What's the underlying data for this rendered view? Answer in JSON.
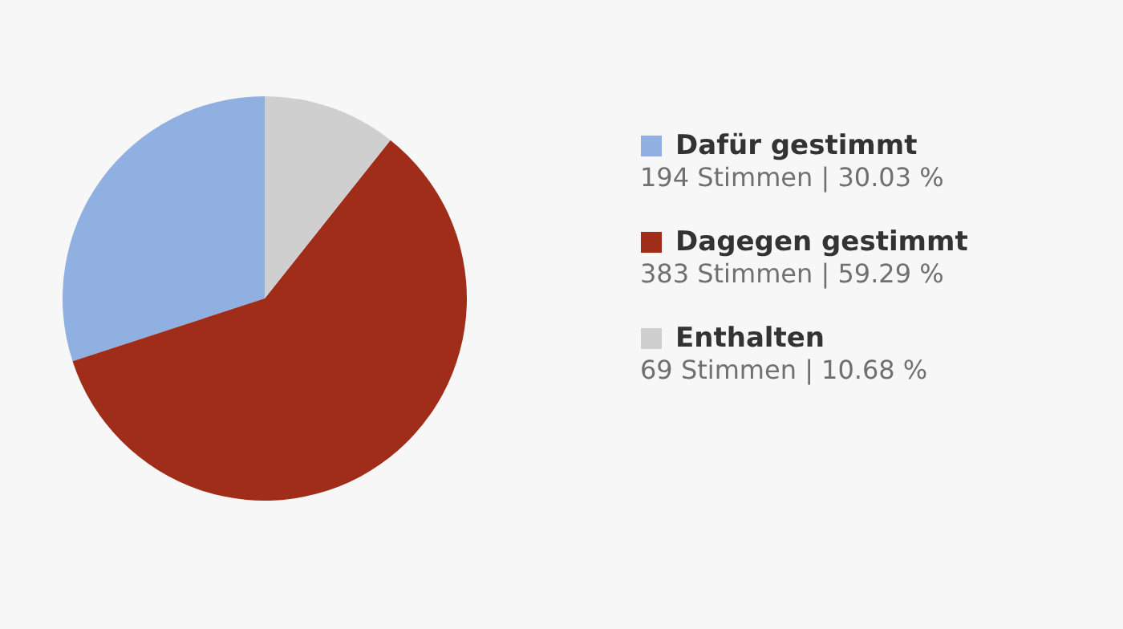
{
  "chart_data": {
    "type": "pie",
    "categories": [
      "Dafür gestimmt",
      "Dagegen gestimmt",
      "Enthalten"
    ],
    "values": [
      194,
      383,
      69
    ],
    "colors": [
      "#8fb0e0",
      "#a02c1a",
      "#cfcfcf"
    ],
    "value_labels": [
      "194 Stimmen | 30.03 %",
      "383 Stimmen | 59.29 %",
      "69 Stimmen | 10.68 %"
    ],
    "legend": "right"
  }
}
